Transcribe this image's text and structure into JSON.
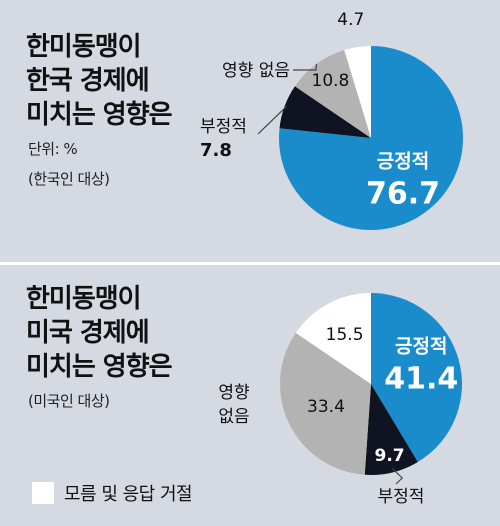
{
  "colors": {
    "positive": "#1a8ccc",
    "negative": "#0f1322",
    "no_effect": "#b3b3b3",
    "dont_know": "#ffffff",
    "background": "#d4d9e2"
  },
  "legend": {
    "label": "모름 및 응답 거절"
  },
  "chart_data": [
    {
      "type": "pie",
      "title_lines": [
        "한미동맹이",
        "한국 경제에",
        "미치는 영향은"
      ],
      "unit": "단위: %",
      "subtitle": "(한국인 대상)",
      "slices": [
        {
          "label": "긍정적",
          "value": 76.7,
          "color": "#1a8ccc"
        },
        {
          "label": "부정적",
          "value": 7.8,
          "color": "#0f1322"
        },
        {
          "label": "영향 없음",
          "value": 10.8,
          "color": "#b3b3b3"
        },
        {
          "label": "모름 및 응답 거절",
          "value": 4.7,
          "color": "#ffffff"
        }
      ]
    },
    {
      "type": "pie",
      "title_lines": [
        "한미동맹이",
        "미국 경제에",
        "미치는 영향은"
      ],
      "subtitle": "(미국인 대상)",
      "slices": [
        {
          "label": "긍정적",
          "value": 41.4,
          "color": "#1a8ccc"
        },
        {
          "label": "부정적",
          "value": 9.7,
          "color": "#0f1322"
        },
        {
          "label": "영향 없음",
          "value": 33.4,
          "color": "#b3b3b3"
        },
        {
          "label": "모름 및 응답 거절",
          "value": 15.5,
          "color": "#ffffff"
        }
      ]
    }
  ]
}
